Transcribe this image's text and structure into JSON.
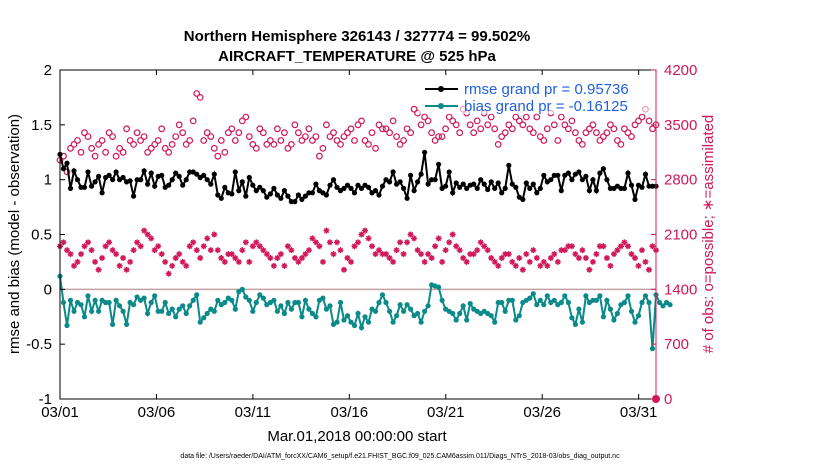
{
  "chart_data": {
    "type": "line",
    "title_line1": "Northern Hemisphere 326143 / 327774 = 99.502%",
    "title_line2": "AIRCRAFT_TEMPERATURE @ 525 hPa",
    "xlabel": "Mar.01,2018 00:00:00 start",
    "ylabel_left": "rmse and bias (model - observation)",
    "ylabel_right": "# of obs: o=possible; ∗=assimilated",
    "footer": "data file: /Users/raeder/DAI/ATM_forcXX/CAM6_setup/f.e21.FHIST_BGC.f09_025.CAM6assim.011/Diags_NTrS_2018-03/obs_diag_output.nc",
    "x_ticks": [
      {
        "label": "03/01",
        "day": 0
      },
      {
        "label": "03/06",
        "day": 5
      },
      {
        "label": "03/11",
        "day": 10
      },
      {
        "label": "03/16",
        "day": 15
      },
      {
        "label": "03/21",
        "day": 20
      },
      {
        "label": "03/26",
        "day": 25
      },
      {
        "label": "03/31",
        "day": 30
      }
    ],
    "xlim": [
      0,
      30.9
    ],
    "ylim_left": [
      -1,
      2
    ],
    "ylim_right": [
      0,
      4200
    ],
    "y_ticks_left": [
      "-1",
      "-0.5",
      "0",
      "0.5",
      "1",
      "1.5",
      "2"
    ],
    "y_ticks_right": [
      "0",
      "700",
      "1400",
      "2100",
      "2800",
      "3500",
      "4200"
    ],
    "zero_line": 0,
    "series": [
      {
        "name": "rmse grand pr = 0.95736",
        "axis": "left",
        "color": "#000000",
        "values": [
          1.23,
          1.1,
          1.15,
          0.92,
          1.08,
          1.0,
          0.93,
          0.93,
          1.07,
          0.94,
          0.98,
          1.03,
          0.88,
          1.02,
          1.04,
          1.0,
          1.07,
          1.0,
          1.02,
          0.98,
          0.99,
          0.85,
          1.0,
          1.0,
          1.08,
          0.96,
          1.06,
          0.94,
          1.03,
          1.04,
          0.93,
          0.95,
          1.0,
          1.06,
          1.03,
          0.95,
          1.0,
          1.07,
          1.07,
          1.05,
          1.02,
          1.04,
          1.0,
          0.96,
          1.05,
          0.86,
          0.83,
          0.93,
          0.88,
          0.87,
          1.07,
          0.9,
          0.98,
          0.85,
          1.02,
          0.95,
          0.9,
          0.93,
          0.9,
          0.84,
          0.87,
          0.92,
          0.86,
          0.83,
          0.9,
          0.85,
          0.8,
          0.8,
          0.86,
          0.82,
          0.85,
          0.88,
          0.88,
          0.96,
          0.9,
          0.88,
          0.86,
          0.95,
          1.0,
          0.93,
          0.9,
          0.92,
          0.95,
          0.92,
          0.88,
          0.95,
          0.92,
          0.95,
          0.93,
          0.88,
          0.9,
          0.86,
          0.94,
          1.0,
          0.98,
          1.07,
          0.96,
          0.98,
          0.92,
          0.83,
          1.04,
          0.9,
          0.98,
          1.05,
          1.25,
          0.96,
          1.0,
          1.0,
          1.14,
          0.92,
          0.94,
          1.07,
          0.88,
          0.97,
          0.93,
          0.96,
          0.92,
          0.95,
          0.96,
          0.92,
          1.0,
          0.96,
          0.91,
          0.98,
          0.92,
          0.97,
          0.88,
          0.92,
          1.13,
          0.96,
          0.93,
          0.84,
          0.82,
          0.97,
          0.92,
          0.96,
          0.88,
          0.92,
          1.04,
          0.98,
          1.0,
          1.04,
          1.04,
          0.9,
          1.04,
          1.06,
          1.0,
          1.05,
          1.07,
          1.0,
          1.03,
          0.9,
          1.0,
          0.9,
          1.06,
          1.1,
          1.0,
          0.92,
          0.92,
          0.94,
          0.92,
          0.92,
          1.06,
          0.95,
          0.82,
          0.95,
          0.93,
          1.05,
          0.94,
          0.94,
          0.94
        ]
      },
      {
        "name": "bias grand pr = -0.16125",
        "axis": "left",
        "color": "#0b8a8a",
        "values": [
          0.12,
          -0.12,
          -0.33,
          -0.1,
          -0.2,
          -0.12,
          -0.14,
          -0.25,
          -0.06,
          -0.2,
          -0.1,
          -0.2,
          -0.1,
          -0.12,
          -0.12,
          -0.32,
          -0.1,
          -0.15,
          -0.2,
          -0.32,
          -0.12,
          -0.14,
          -0.07,
          -0.1,
          -0.08,
          -0.22,
          -0.12,
          -0.06,
          -0.2,
          -0.2,
          -0.12,
          -0.22,
          -0.18,
          -0.25,
          -0.18,
          -0.15,
          -0.22,
          -0.15,
          -0.1,
          -0.05,
          -0.3,
          -0.26,
          -0.22,
          -0.18,
          -0.2,
          -0.1,
          -0.14,
          -0.12,
          -0.08,
          -0.1,
          -0.18,
          -0.02,
          0.0,
          -0.07,
          -0.1,
          -0.2,
          -0.12,
          -0.05,
          -0.08,
          -0.14,
          -0.12,
          -0.1,
          -0.2,
          -0.15,
          -0.22,
          -0.12,
          -0.18,
          -0.12,
          -0.12,
          -0.25,
          -0.1,
          -0.18,
          -0.22,
          -0.25,
          -0.1,
          -0.08,
          -0.18,
          -0.15,
          -0.32,
          -0.3,
          -0.12,
          -0.28,
          -0.24,
          -0.3,
          -0.33,
          -0.22,
          -0.35,
          -0.25,
          -0.3,
          -0.18,
          -0.2,
          -0.12,
          -0.05,
          -0.12,
          -0.2,
          -0.3,
          -0.24,
          -0.14,
          -0.2,
          -0.14,
          -0.18,
          -0.24,
          -0.22,
          -0.3,
          -0.2,
          -0.15,
          0.04,
          0.03,
          0.02,
          -0.1,
          -0.18,
          -0.2,
          -0.22,
          -0.28,
          -0.22,
          -0.15,
          -0.28,
          -0.13,
          -0.18,
          -0.2,
          -0.22,
          -0.2,
          -0.22,
          -0.24,
          -0.3,
          -0.12,
          -0.12,
          -0.2,
          -0.1,
          -0.1,
          -0.28,
          -0.24,
          -0.12,
          -0.1,
          -0.08,
          -0.04,
          -0.14,
          -0.1,
          -0.14,
          -0.06,
          -0.12,
          -0.1,
          -0.14,
          -0.12,
          -0.06,
          -0.12,
          -0.26,
          -0.32,
          -0.18,
          -0.3,
          -0.06,
          -0.12,
          -0.1,
          -0.1,
          -0.06,
          -0.25,
          -0.1,
          -0.18,
          -0.28,
          -0.22,
          -0.14,
          -0.12,
          -0.06,
          -0.2,
          -0.3,
          -0.24,
          -0.12,
          -0.06,
          -0.12,
          -0.54,
          -0.05,
          -0.12,
          -0.15,
          -0.12,
          -0.14
        ]
      },
      {
        "name": "obs possible",
        "axis": "right",
        "color": "#d1185a",
        "marker": "circle",
        "values": [
          3050,
          3100,
          2900,
          3200,
          3250,
          3300,
          3150,
          3400,
          3350,
          3200,
          3100,
          3250,
          3300,
          3150,
          3400,
          3350,
          3100,
          3200,
          3150,
          3450,
          3300,
          3250,
          3400,
          3300,
          3350,
          3150,
          3200,
          3250,
          3300,
          3450,
          3200,
          3150,
          3250,
          3350,
          3500,
          3400,
          3250,
          3300,
          3550,
          3900,
          3850,
          3300,
          3400,
          3350,
          3200,
          3100,
          3300,
          3150,
          3400,
          3450,
          3300,
          3400,
          3550,
          3600,
          3350,
          3250,
          3200,
          3450,
          3400,
          3250,
          3300,
          3250,
          3450,
          3300,
          3400,
          3200,
          3250,
          3500,
          3400,
          3300,
          3350,
          3450,
          3300,
          3350,
          3100,
          3200,
          3500,
          3350,
          3400,
          3300,
          3250,
          3350,
          3400,
          3450,
          3300,
          3500,
          3550,
          3300,
          3250,
          3400,
          3200,
          3500,
          3450,
          3450,
          3400,
          3550,
          3350,
          3250,
          3300,
          3450,
          3400,
          3700,
          3650,
          3500,
          3600,
          3550,
          3400,
          3300,
          3350,
          3350,
          3450,
          3600,
          3550,
          3500,
          3400,
          3700,
          3650,
          3500,
          3400,
          3550,
          3450,
          3650,
          3500,
          3600,
          3450,
          3250,
          3350,
          3400,
          3500,
          3450,
          3600,
          3550,
          3500,
          3600,
          3450,
          3400,
          3600,
          3350,
          3300,
          3450,
          3650,
          3500,
          3300,
          3600,
          3500,
          3450,
          3550,
          3400,
          3300,
          3250,
          3400,
          3450,
          3500,
          3400,
          3300,
          3350,
          3400,
          3500,
          3450,
          3300,
          3250,
          3450,
          3400,
          3350,
          3500,
          3550,
          3600,
          3700,
          3550,
          3450,
          3500
        ]
      },
      {
        "name": "obs assimilated",
        "axis": "right",
        "color": "#d1185a",
        "marker": "asterisk",
        "values": [
          1950,
          2000,
          1900,
          1850,
          1700,
          1750,
          1850,
          1950,
          2000,
          1900,
          1750,
          1650,
          1800,
          1950,
          2000,
          1900,
          1850,
          1700,
          1800,
          1650,
          1750,
          1900,
          2000,
          1950,
          2150,
          2100,
          2050,
          1900,
          1950,
          1850,
          1750,
          1600,
          1700,
          1800,
          1850,
          1750,
          1700,
          1950,
          2000,
          1900,
          1800,
          1950,
          2050,
          1900,
          2100,
          1900,
          1800,
          1750,
          1850,
          1850,
          1800,
          1750,
          1900,
          2000,
          1750,
          1950,
          2000,
          1950,
          1900,
          1850,
          1800,
          1700,
          1800,
          1850,
          1700,
          1950,
          1900,
          1800,
          1750,
          1800,
          1850,
          1900,
          2050,
          2000,
          1950,
          1750,
          2150,
          2000,
          1850,
          2000,
          1900,
          1650,
          1800,
          1750,
          1950,
          2000,
          2100,
          2150,
          2050,
          1950,
          1850,
          1900,
          1850,
          1850,
          1800,
          1750,
          1900,
          2000,
          1850,
          2000,
          2100,
          2050,
          1900,
          1850,
          1750,
          1850,
          1800,
          1950,
          2050,
          1750,
          1900,
          2000,
          2100,
          1950,
          1900,
          1800,
          1750,
          1850,
          1850,
          1900,
          2000,
          1950,
          1900,
          1800,
          1750,
          1700,
          1800,
          1850,
          1850,
          1750,
          1700,
          1800,
          1650,
          1850,
          1750,
          1900,
          1800,
          1700,
          1750,
          1700,
          1800,
          1850,
          1750,
          1900,
          1900,
          1950,
          1950,
          1850,
          1800,
          1900,
          1800,
          1650,
          1750,
          1850,
          1950,
          1950,
          1800,
          1700,
          1850,
          1900,
          1950,
          2000,
          1950,
          1850,
          1800,
          1700,
          1900,
          1750,
          1650,
          1950,
          1900
        ]
      }
    ],
    "extra_marker": {
      "label": "0",
      "value": 0
    }
  }
}
